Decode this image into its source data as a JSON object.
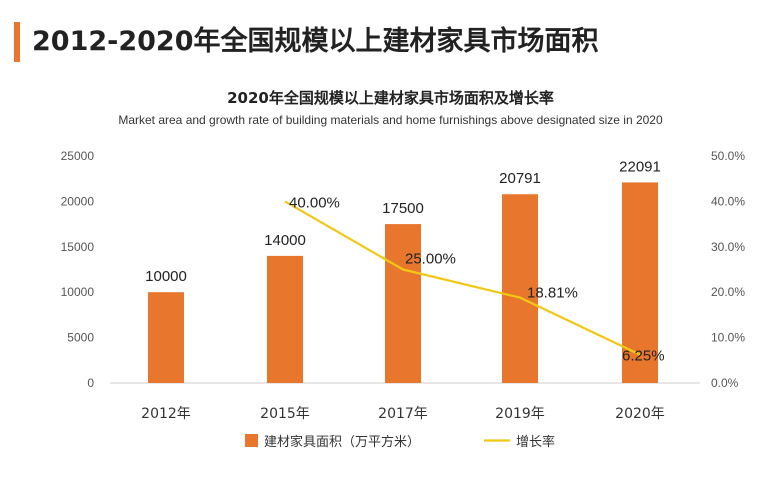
{
  "header": {
    "title": "2012-2020年全国规模以上建材家具市场面积",
    "accent_color": "#e8762c"
  },
  "chart_data": {
    "type": "bar",
    "title": "2020年全国规模以上建材家具市场面积及增长率",
    "subtitle": "Market area and growth rate of building materials and home furnishings above designated size in 2020",
    "categories": [
      "2012年",
      "2015年",
      "2017年",
      "2019年",
      "2020年"
    ],
    "series": [
      {
        "name": "建材家具面积（万平方米）",
        "type": "bar",
        "axis": "left",
        "color": "#e8762c",
        "values": [
          10000,
          14000,
          17500,
          20791,
          22091
        ],
        "labels": [
          "10000",
          "14000",
          "17500",
          "20791",
          "22091"
        ]
      },
      {
        "name": "增长率",
        "type": "line",
        "axis": "right",
        "color": "#f2c814",
        "values": [
          null,
          40.0,
          25.0,
          18.81,
          6.25
        ],
        "labels": [
          "",
          "40.00%",
          "25.00%",
          "18.81%",
          "6.25%"
        ]
      }
    ],
    "y_left": {
      "ylim": [
        0,
        25000
      ],
      "ticks": [
        0,
        5000,
        10000,
        15000,
        20000,
        25000
      ],
      "tick_labels": [
        "0",
        "5000",
        "10000",
        "15000",
        "20000",
        "25000"
      ]
    },
    "y_right": {
      "ylim": [
        0,
        50
      ],
      "ticks": [
        0,
        10,
        20,
        30,
        40,
        50
      ],
      "tick_labels": [
        "0.0%",
        "10.0%",
        "20.0%",
        "30.0%",
        "40.0%",
        "50.0%"
      ]
    },
    "legend_position": "bottom",
    "grid": false
  }
}
